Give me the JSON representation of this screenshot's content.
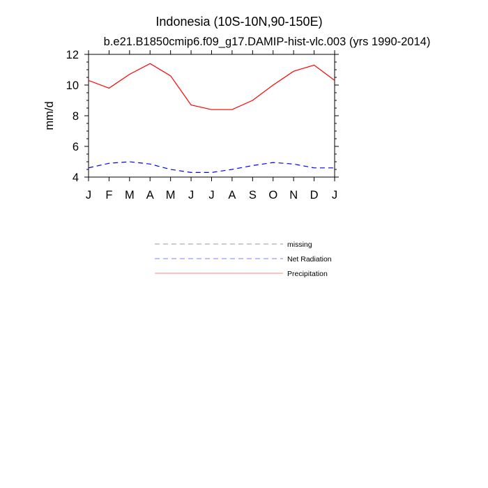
{
  "chart_data": {
    "type": "line",
    "title": "Indonesia (10S-10N,90-150E)",
    "subtitle": "b.e21.B1850cmip6.f09_g17.DAMIP-hist-vlc.003 (yrs 1990-2014)",
    "ylabel": "mm/d",
    "xlabel": "",
    "categories": [
      "J",
      "F",
      "M",
      "A",
      "M",
      "J",
      "J",
      "A",
      "S",
      "O",
      "N",
      "D",
      "J"
    ],
    "ylim": [
      4,
      12
    ],
    "yticks": [
      4,
      6,
      8,
      10,
      12
    ],
    "grid": false,
    "legend_position": "bottom-center",
    "series": [
      {
        "name": "Precipitation",
        "color": "#ff0000",
        "dash": "solid",
        "values": [
          10.3,
          9.8,
          10.7,
          11.4,
          10.6,
          8.7,
          8.4,
          8.4,
          9.0,
          10.0,
          10.9,
          11.3,
          10.3
        ]
      },
      {
        "name": "Net Radiation",
        "color": "#0000ff",
        "dash": "dashed",
        "values": [
          4.6,
          4.9,
          5.0,
          4.85,
          4.5,
          4.3,
          4.3,
          4.5,
          4.75,
          4.95,
          4.85,
          4.6,
          4.6
        ]
      }
    ],
    "legend": [
      {
        "label": "missing",
        "color": "#999999",
        "dash": "dashed"
      },
      {
        "label": "Net Radiation",
        "color": "#8080ff",
        "dash": "dashed"
      },
      {
        "label": "Precipitation",
        "color": "#ff8080",
        "dash": "solid"
      }
    ]
  }
}
